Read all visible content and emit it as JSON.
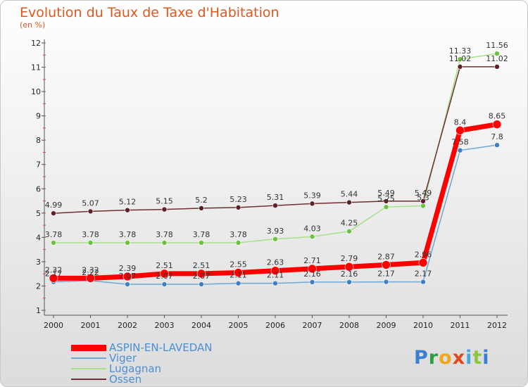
{
  "title": "Evolution du Taux de Taxe d'Habitation",
  "subtitle": "(en %)",
  "logo": {
    "letters": [
      {
        "ch": "P",
        "color": "#3b7fd4"
      },
      {
        "ch": "r",
        "color": "#2e9e46"
      },
      {
        "ch": "o",
        "color": "#f0a81a"
      },
      {
        "ch": "x",
        "color": "#e2481b"
      },
      {
        "ch": "i",
        "color": "#4aa8d8"
      },
      {
        "ch": "t",
        "color": "#8cc63f"
      },
      {
        "ch": "i",
        "color": "#3b7fd4"
      }
    ]
  },
  "chart_data": {
    "type": "line",
    "title": "Evolution du Taux de Taxe d'Habitation",
    "subtitle": "(en %)",
    "xlabel": "",
    "ylabel": "",
    "x": [
      "2000",
      "2001",
      "2002",
      "2003",
      "2004",
      "2005",
      "2006",
      "2007",
      "2008",
      "2009",
      "2010",
      "2011",
      "2012"
    ],
    "ylim": [
      1,
      12
    ],
    "yticks": [
      "1",
      "2",
      "3",
      "4",
      "5",
      "6",
      "7",
      "8",
      "9",
      "10",
      "11",
      "12"
    ],
    "grid": false,
    "legend_position": "bottom-left",
    "series": [
      {
        "name": "ASPIN-EN-LAVEDAN",
        "color": "#ff0000",
        "point_color": "#ff0000",
        "width": 7,
        "radius": 6,
        "values": [
          2.32,
          2.32,
          2.39,
          2.51,
          2.51,
          2.55,
          2.63,
          2.71,
          2.79,
          2.87,
          2.96,
          8.4,
          8.65
        ],
        "labels": [
          "2.32",
          "2.32",
          "2.39",
          "2.51",
          "2.51",
          "2.55",
          "2.63",
          "2.71",
          "2.79",
          "2.87",
          "2.96",
          "8.4",
          "8.65"
        ]
      },
      {
        "name": "Viger",
        "color": "#6fa6d2",
        "point_color": "#3e7fc4",
        "width": 1.5,
        "radius": 3.5,
        "values": [
          2.17,
          2.22,
          2.07,
          2.07,
          2.07,
          2.11,
          2.11,
          2.16,
          2.16,
          2.17,
          2.17,
          7.58,
          7.8
        ],
        "labels": [
          "2.17",
          "2.22",
          "2.07",
          "2.07",
          "2.07",
          "2.11",
          "2.11",
          "2.16",
          "2.16",
          "2.17",
          "2.17",
          "7.58",
          "7.8"
        ]
      },
      {
        "name": "Lugagnan",
        "color": "#a6e08a",
        "point_color": "#6cc23e",
        "width": 1.5,
        "radius": 3.5,
        "values": [
          3.78,
          3.78,
          3.78,
          3.78,
          3.78,
          3.78,
          3.93,
          4.03,
          4.25,
          5.25,
          5.3,
          11.33,
          11.56
        ],
        "labels": [
          "3.78",
          "3.78",
          "3.78",
          "3.78",
          "3.78",
          "3.78",
          "3.93",
          "4.03",
          "4.25",
          "5.25",
          "5.3",
          "11.33",
          "11.56"
        ]
      },
      {
        "name": "Ossen",
        "color": "#6e2e35",
        "point_color": "#5e1f27",
        "width": 1.5,
        "radius": 3.5,
        "values": [
          4.99,
          5.07,
          5.12,
          5.15,
          5.2,
          5.23,
          5.31,
          5.39,
          5.44,
          5.49,
          5.49,
          11.02,
          11.02
        ],
        "labels": [
          "4.99",
          "5.07",
          "5.12",
          "5.15",
          "5.2",
          "5.23",
          "5.31",
          "5.39",
          "5.44",
          "5.49",
          "5.49",
          "11.02",
          "11.02"
        ]
      }
    ]
  }
}
